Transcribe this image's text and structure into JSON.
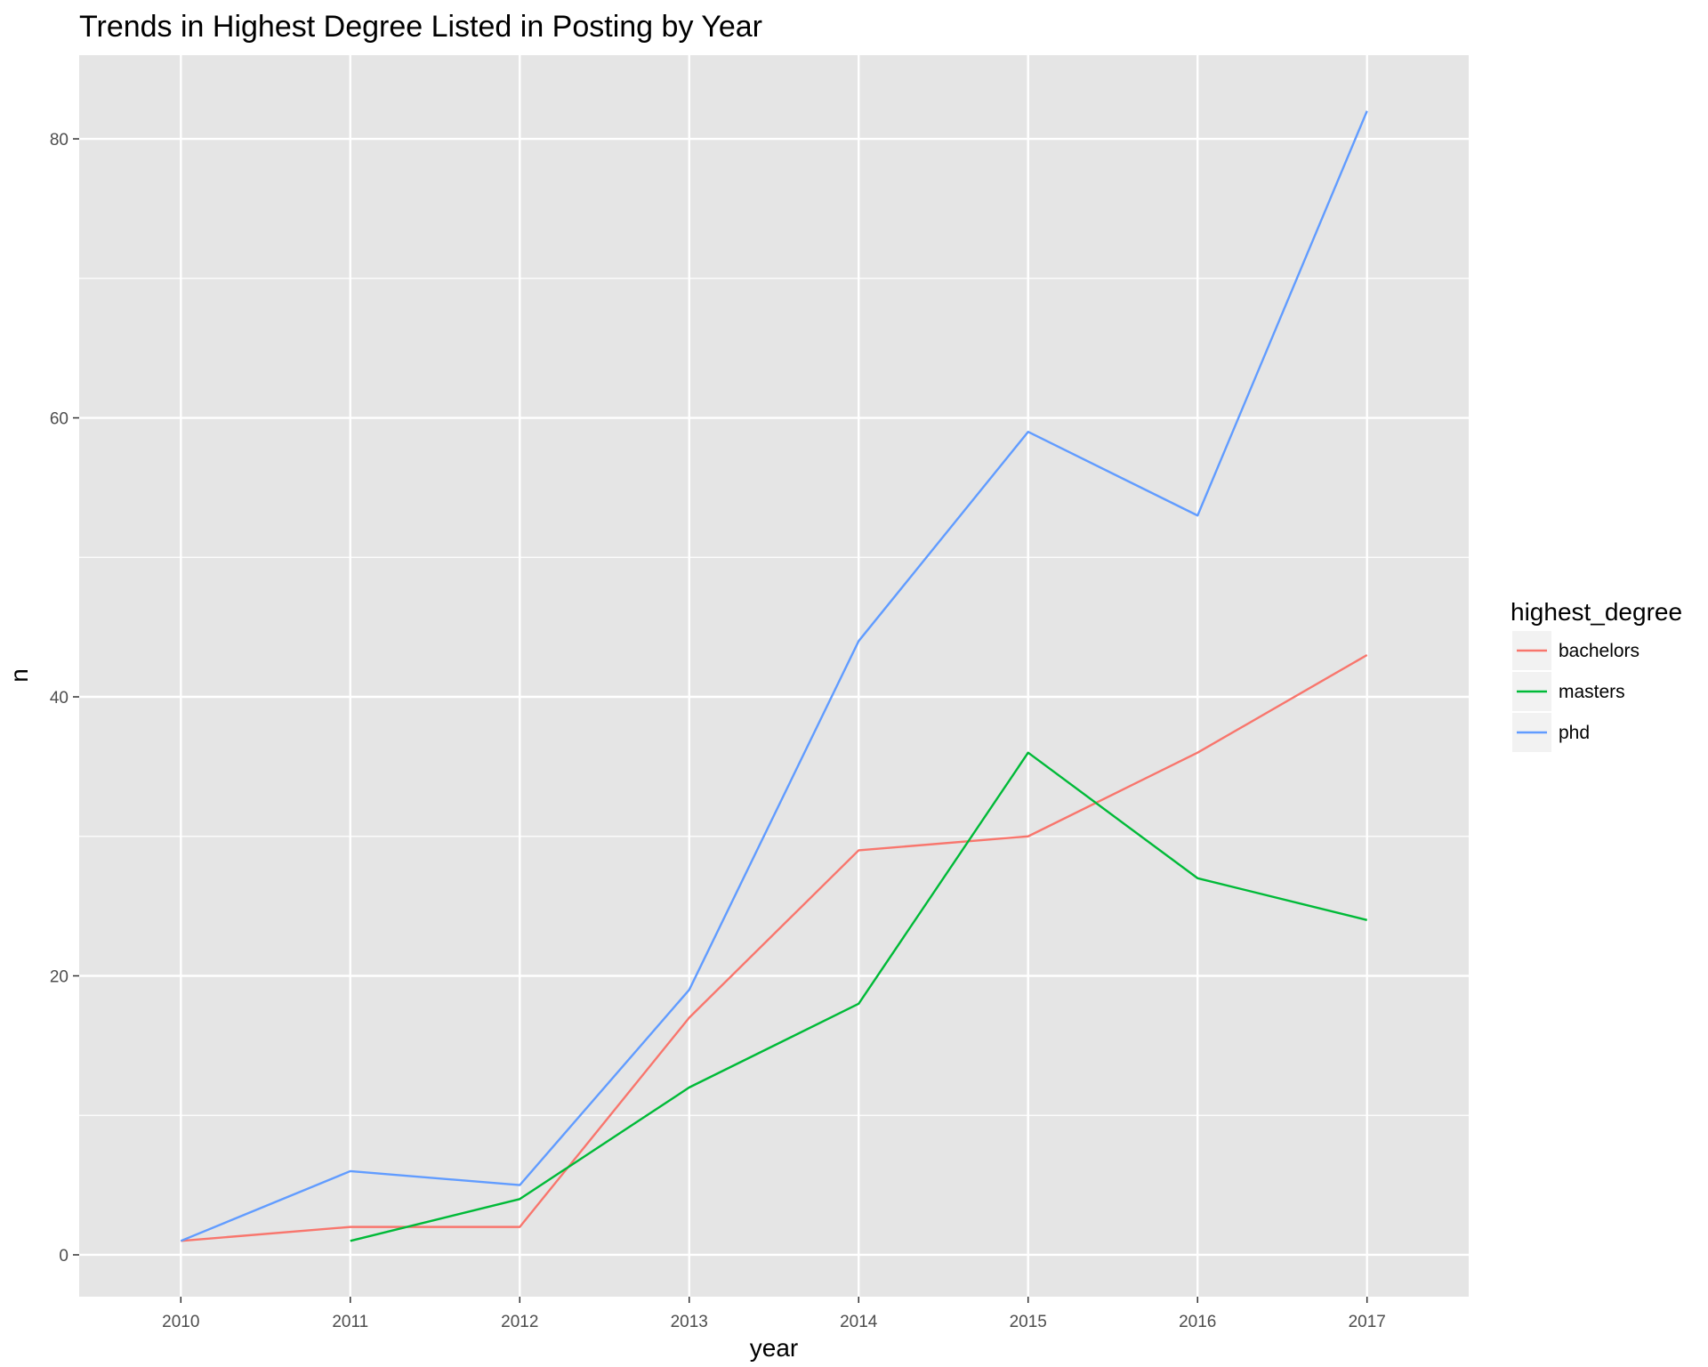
{
  "chart_data": {
    "type": "line",
    "title": "Trends in Highest Degree Listed in Posting by Year",
    "xlabel": "year",
    "ylabel": "n",
    "x": [
      2010,
      2011,
      2012,
      2013,
      2014,
      2015,
      2016,
      2017
    ],
    "xlim": [
      2009.4,
      2017.6
    ],
    "ylim": [
      -3,
      86
    ],
    "y_ticks": [
      0,
      20,
      40,
      60,
      80
    ],
    "grid": true,
    "legend": {
      "title": "highest_degree",
      "placement": "right"
    },
    "series": [
      {
        "name": "bachelors",
        "color": "#F8766D",
        "x": [
          2010,
          2011,
          2012,
          2013,
          2014,
          2015,
          2016,
          2017
        ],
        "values": [
          1,
          2,
          2,
          17,
          29,
          30,
          36,
          43
        ]
      },
      {
        "name": "masters",
        "color": "#00BA38",
        "x": [
          2011,
          2012,
          2013,
          2014,
          2015,
          2016,
          2017
        ],
        "values": [
          1,
          4,
          12,
          18,
          36,
          27,
          24
        ]
      },
      {
        "name": "phd",
        "color": "#619CFF",
        "x": [
          2010,
          2011,
          2012,
          2013,
          2014,
          2015,
          2016,
          2017
        ],
        "values": [
          1,
          6,
          5,
          19,
          44,
          59,
          53,
          82
        ]
      }
    ]
  },
  "colors": {
    "panel_background": "#E5E5E5",
    "grid": "#FFFFFF",
    "legend_key_background": "#F2F2F2"
  }
}
